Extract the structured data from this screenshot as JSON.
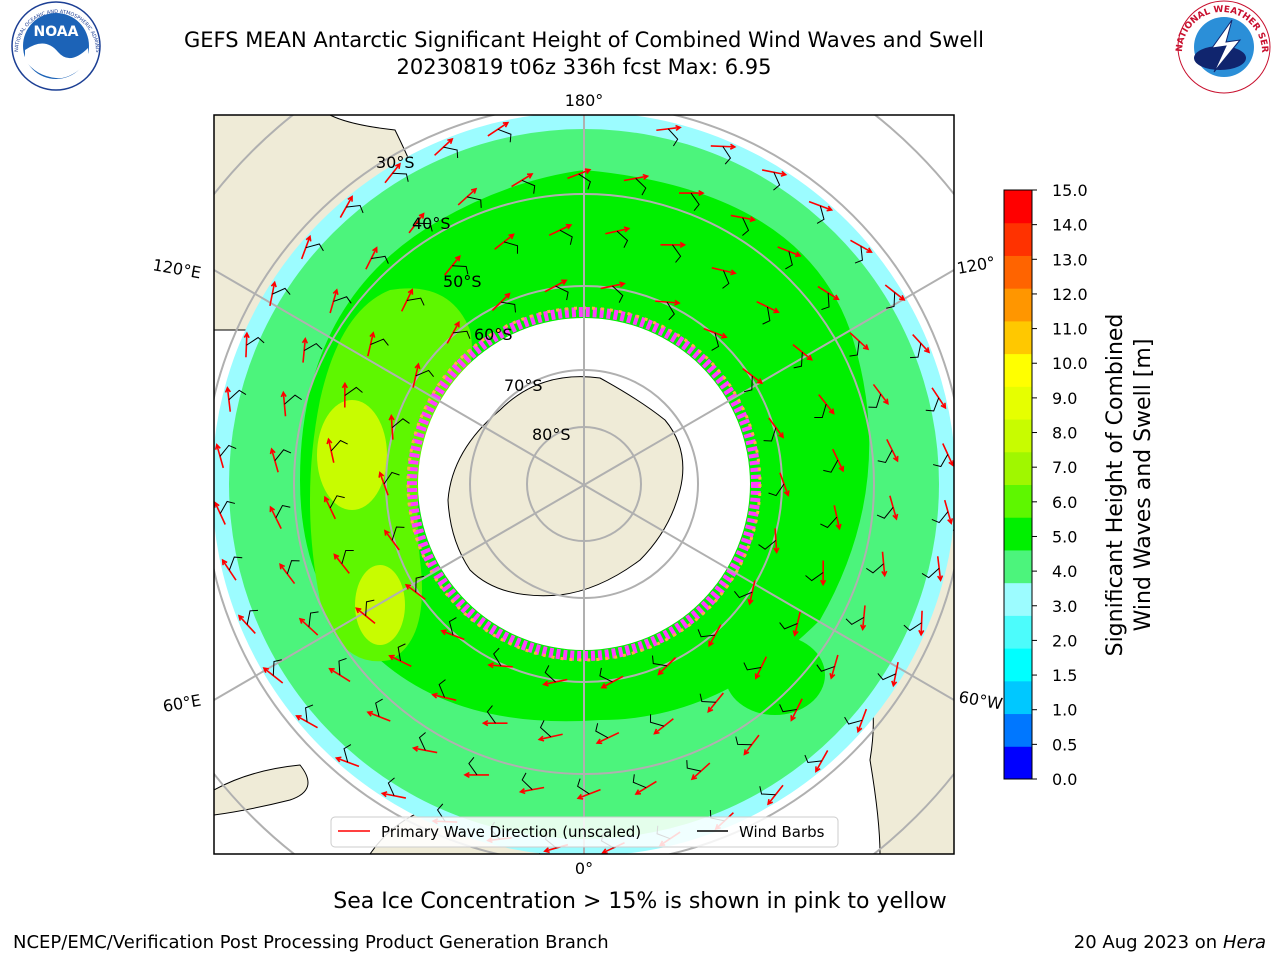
{
  "header": {
    "title_line1": "GEFS MEAN Antarctic Significant Height of Combined Wind Waves and Swell",
    "title_line2": "20230819 t06z 336h fcst   Max: 6.95"
  },
  "logos": {
    "left": {
      "text": "NOAA",
      "ring_text": "NATIONAL OCEANIC AND ATMOSPHERIC ADMINISTRATION · U.S. DEPARTMENT OF COMMERCE"
    },
    "right": {
      "ring_text": "NATIONAL WEATHER SERVICE"
    }
  },
  "map": {
    "projection": "south-polar stereographic",
    "longitude_labels": {
      "top": "180°",
      "bottom": "0°",
      "left_upper": "120°E",
      "left_lower": "60°E",
      "right_upper": "120°",
      "right_lower": "60°W"
    },
    "latitude_labels": [
      "30°S",
      "40°S",
      "50°S",
      "60°S",
      "70°S",
      "80°S"
    ],
    "colors": {
      "land": "#efebd7",
      "ocean_low": "#9cfcff",
      "band_4_5": "#00f000",
      "band_5_6": "#5ef700",
      "band_3_4": "#4cf47c",
      "band_6_7": "#c8fc00",
      "ice_pink": "#ff40ff",
      "ice_yellow": "#ffb040",
      "wave_arrow": "#ff0000",
      "wind_barb": "#000000"
    },
    "legend": {
      "items": [
        {
          "label": "Primary Wave Direction (unscaled)",
          "color": "#ff0000"
        },
        {
          "label": "Wind Barbs",
          "color": "#000000"
        }
      ]
    }
  },
  "colorbar": {
    "label_line1": "Significant Height of Combined",
    "label_line2": "Wind Waves and Swell [m]",
    "ticks": [
      "0.0",
      "0.5",
      "1.0",
      "1.5",
      "2.0",
      "3.0",
      "4.0",
      "5.0",
      "6.0",
      "7.0",
      "8.0",
      "9.0",
      "10.0",
      "11.0",
      "12.0",
      "13.0",
      "14.0",
      "15.0"
    ],
    "colors": [
      "#0000ff",
      "#0077ff",
      "#00c8ff",
      "#00ffff",
      "#4cfcfc",
      "#9cfcff",
      "#4cf47c",
      "#00f000",
      "#5ef700",
      "#a0f700",
      "#c8fc00",
      "#e6ff00",
      "#ffff00",
      "#ffc800",
      "#ff9600",
      "#ff6400",
      "#ff3200",
      "#ff0000"
    ]
  },
  "footer": {
    "sea_ice_note": "Sea Ice Concentration > 15% is shown in pink to yellow",
    "org": "NCEP/EMC/Verification Post Processing Product Generation Branch",
    "date": "20 Aug 2023 on",
    "machine": "Hera"
  }
}
